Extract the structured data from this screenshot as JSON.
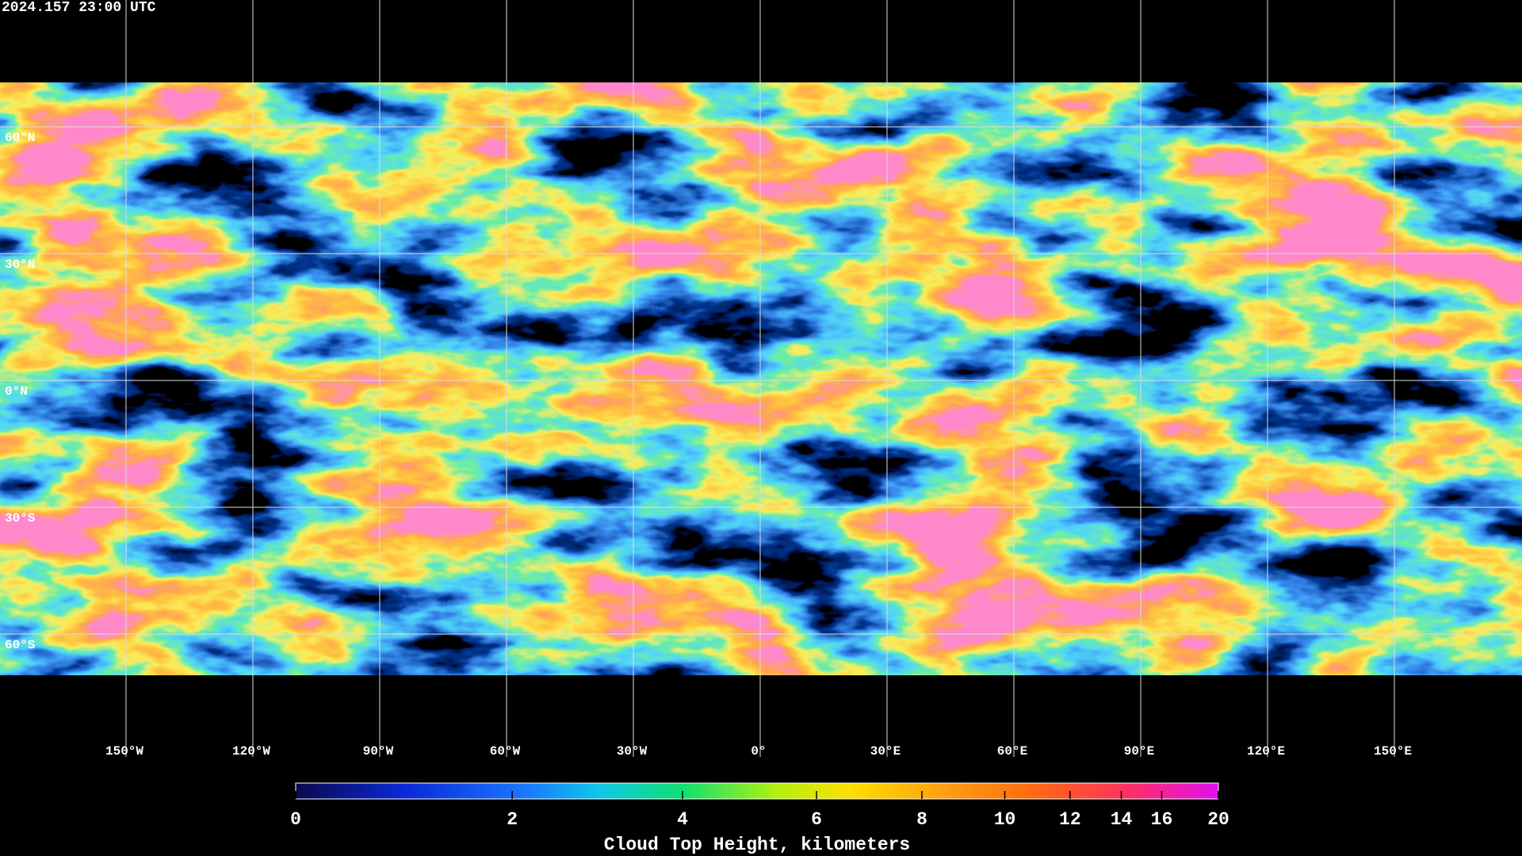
{
  "header": {
    "timestamp": "2024.157 23:00 UTC"
  },
  "map": {
    "lat_lines": [
      {
        "value": 60,
        "label": "60°N"
      },
      {
        "value": 30,
        "label": "30°N"
      },
      {
        "value": 0,
        "label": "0°N"
      },
      {
        "value": -30,
        "label": "30°S"
      },
      {
        "value": -60,
        "label": "60°S"
      }
    ],
    "lon_lines": [
      {
        "value": -150,
        "label": "150°W"
      },
      {
        "value": -120,
        "label": "120°W"
      },
      {
        "value": -90,
        "label": "90°W"
      },
      {
        "value": -60,
        "label": "60°W"
      },
      {
        "value": -30,
        "label": "30°W"
      },
      {
        "value": 0,
        "label": "0°"
      },
      {
        "value": 30,
        "label": "30°E"
      },
      {
        "value": 60,
        "label": "60°E"
      },
      {
        "value": 90,
        "label": "90°E"
      },
      {
        "value": 120,
        "label": "120°E"
      },
      {
        "value": 150,
        "label": "150°E"
      }
    ]
  },
  "colorbar": {
    "label": "Cloud Top Height, kilometers",
    "range": [
      0,
      20
    ],
    "ticks": [
      0,
      2,
      4,
      6,
      8,
      10,
      12,
      14,
      16,
      20
    ]
  }
}
